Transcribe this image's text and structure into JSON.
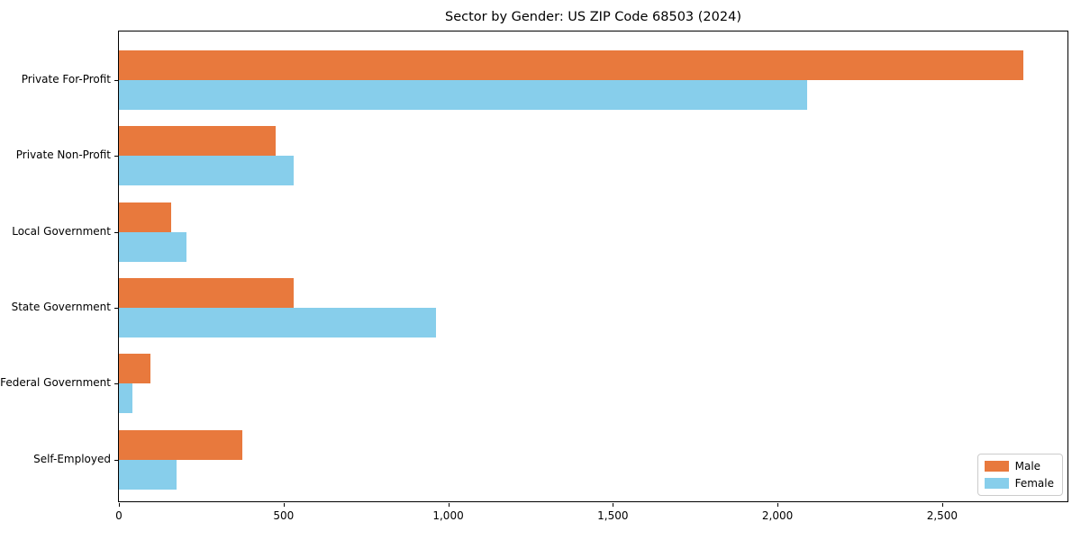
{
  "title": "Sector by Gender: US ZIP Code 68503 (2024)",
  "colors": {
    "male": "#E8793D",
    "female": "#87CEEB",
    "spine": "#000000",
    "legend_border": "#CCCCCC",
    "background": "#FFFFFF"
  },
  "chart_data": {
    "type": "bar",
    "orientation": "horizontal",
    "title": "Sector by Gender: US ZIP Code 68503 (2024)",
    "xlabel": "",
    "ylabel": "",
    "categories": [
      "Private For-Profit",
      "Private Non-Profit",
      "Local Government",
      "State Government",
      "Federal Government",
      "Self-Employed"
    ],
    "series": [
      {
        "name": "Male",
        "color": "#E8793D",
        "values": [
          2746,
          476,
          159,
          530,
          96,
          375
        ]
      },
      {
        "name": "Female",
        "color": "#87CEEB",
        "values": [
          2089,
          530,
          205,
          963,
          41,
          175
        ]
      }
    ],
    "x_ticks": [
      0,
      500,
      1000,
      1500,
      2000,
      2500
    ],
    "x_tick_labels": [
      "0",
      "500",
      "1,000",
      "1,500",
      "2,000",
      "2,500"
    ],
    "xlim": [
      0,
      2886
    ],
    "grid": false,
    "legend_position": "lower right"
  }
}
